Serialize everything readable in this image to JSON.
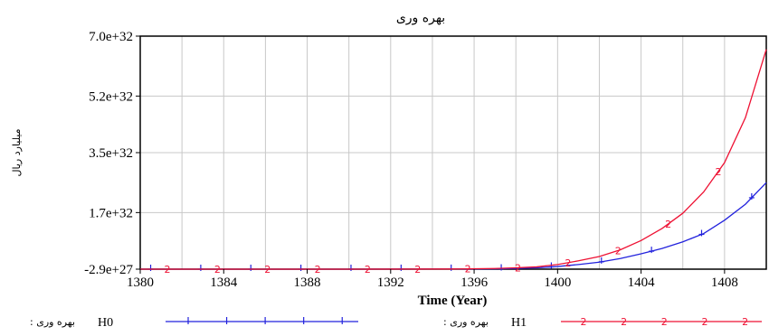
{
  "chart_data": {
    "type": "line",
    "title": "بهره وری",
    "xlabel": "Time (Year)",
    "ylabel": "میلیارد ریال",
    "xlim": [
      1380,
      1410
    ],
    "ylim": [
      -2.9e+27,
      7e+32
    ],
    "x_ticks": [
      1380,
      1384,
      1388,
      1392,
      1396,
      1400,
      1404,
      1408
    ],
    "x_tick_labels": [
      "1380",
      "1384",
      "1388",
      "1392",
      "1396",
      "1400",
      "1404",
      "1408"
    ],
    "y_ticks": [
      -2.9e+27,
      1.7e+32,
      3.5e+32,
      5.2e+32,
      7e+32
    ],
    "y_tick_labels": [
      "-2.9e+27",
      "1.7e+32",
      "3.5e+32",
      "5.2e+32",
      "7.0e+32"
    ],
    "x_grid_step": 2,
    "grid": true,
    "legend_position": "bottom",
    "series": [
      {
        "name": "بهره وری : H0",
        "legend_label": "H0",
        "legend_suffix": ": بهره وری",
        "color": "#2222dd",
        "marker": "+",
        "x": [
          1380,
          1390,
          1395,
          1397,
          1398,
          1399,
          1400,
          1401,
          1402,
          1403,
          1404,
          1405,
          1406,
          1407,
          1408,
          1409,
          1410
        ],
        "y": [
          0,
          0,
          3e+29,
          1e+30,
          2e+30,
          4e+30,
          8e+30,
          1.4e+31,
          2.1e+31,
          3.2e+31,
          4.6e+31,
          6.2e+31,
          8.2e+31,
          1.07e+32,
          1.47e+32,
          1.95e+32,
          2.6e+32
        ]
      },
      {
        "name": "بهره وری : H1",
        "legend_label": "H1",
        "legend_suffix": ": بهره وری",
        "color": "#ee1133",
        "marker": "2",
        "x": [
          1380,
          1390,
          1395,
          1397,
          1398,
          1399,
          1400,
          1401,
          1402,
          1403,
          1404,
          1405,
          1406,
          1407,
          1408,
          1409,
          1410
        ],
        "y": [
          0,
          0,
          5e+29,
          2e+30,
          4e+30,
          7e+30,
          1.4e+31,
          2.5e+31,
          3.8e+31,
          5.8e+31,
          8.6e+31,
          1.22e+32,
          1.68e+32,
          2.32e+32,
          3.2e+32,
          4.55e+32,
          6.6e+32
        ]
      }
    ]
  }
}
